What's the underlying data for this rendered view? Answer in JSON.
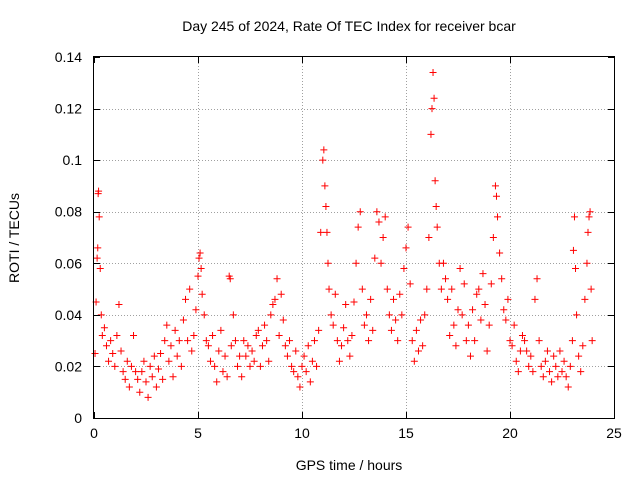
{
  "chart_data": {
    "type": "scatter",
    "title": "Day 245 of 2024, Rate Of TEC Index for receiver bcar",
    "xlabel": "GPS time / hours",
    "ylabel": "ROTI / TECUs",
    "xlim": [
      0,
      25
    ],
    "ylim": [
      0,
      0.14
    ],
    "xticks": [
      0,
      5,
      10,
      15,
      20,
      25
    ],
    "xtick_labels": [
      "0",
      "5",
      "10",
      "15",
      "20",
      "25"
    ],
    "yticks": [
      0,
      0.02,
      0.04,
      0.06,
      0.08,
      0.1,
      0.12,
      0.14
    ],
    "ytick_labels": [
      "0",
      "0.02",
      "0.04",
      "0.06",
      "0.08",
      "0.1",
      "0.12",
      "0.14"
    ],
    "grid": true,
    "marker": "+",
    "color": "#ff0000",
    "series": [
      {
        "points": [
          [
            0.05,
            0.025
          ],
          [
            0.1,
            0.045
          ],
          [
            0.15,
            0.062
          ],
          [
            0.18,
            0.066
          ],
          [
            0.2,
            0.087
          ],
          [
            0.22,
            0.088
          ],
          [
            0.25,
            0.078
          ],
          [
            0.3,
            0.058
          ],
          [
            0.35,
            0.04
          ],
          [
            0.4,
            0.032
          ],
          [
            0.5,
            0.035
          ],
          [
            0.6,
            0.028
          ],
          [
            0.7,
            0.022
          ],
          [
            0.8,
            0.03
          ],
          [
            0.9,
            0.025
          ],
          [
            1.0,
            0.02
          ],
          [
            1.1,
            0.032
          ],
          [
            1.2,
            0.044
          ],
          [
            1.3,
            0.026
          ],
          [
            1.4,
            0.018
          ],
          [
            1.5,
            0.015
          ],
          [
            1.6,
            0.022
          ],
          [
            1.7,
            0.012
          ],
          [
            1.8,
            0.02
          ],
          [
            1.9,
            0.032
          ],
          [
            2.0,
            0.018
          ],
          [
            2.1,
            0.015
          ],
          [
            2.2,
            0.01
          ],
          [
            2.3,
            0.018
          ],
          [
            2.4,
            0.022
          ],
          [
            2.5,
            0.014
          ],
          [
            2.6,
            0.008
          ],
          [
            2.7,
            0.02
          ],
          [
            2.8,
            0.016
          ],
          [
            2.9,
            0.024
          ],
          [
            3.0,
            0.012
          ],
          [
            3.1,
            0.019
          ],
          [
            3.2,
            0.025
          ],
          [
            3.3,
            0.015
          ],
          [
            3.4,
            0.03
          ],
          [
            3.5,
            0.036
          ],
          [
            3.6,
            0.022
          ],
          [
            3.7,
            0.028
          ],
          [
            3.8,
            0.016
          ],
          [
            3.9,
            0.034
          ],
          [
            4.0,
            0.024
          ],
          [
            4.1,
            0.03
          ],
          [
            4.2,
            0.02
          ],
          [
            4.3,
            0.038
          ],
          [
            4.4,
            0.046
          ],
          [
            4.5,
            0.03
          ],
          [
            4.6,
            0.05
          ],
          [
            4.7,
            0.026
          ],
          [
            4.8,
            0.032
          ],
          [
            4.9,
            0.042
          ],
          [
            5.0,
            0.055
          ],
          [
            5.05,
            0.062
          ],
          [
            5.1,
            0.064
          ],
          [
            5.15,
            0.058
          ],
          [
            5.2,
            0.048
          ],
          [
            5.3,
            0.04
          ],
          [
            5.4,
            0.03
          ],
          [
            5.5,
            0.028
          ],
          [
            5.6,
            0.022
          ],
          [
            5.7,
            0.032
          ],
          [
            5.8,
            0.02
          ],
          [
            5.9,
            0.014
          ],
          [
            6.0,
            0.026
          ],
          [
            6.1,
            0.034
          ],
          [
            6.2,
            0.018
          ],
          [
            6.3,
            0.024
          ],
          [
            6.4,
            0.016
          ],
          [
            6.5,
            0.055
          ],
          [
            6.55,
            0.054
          ],
          [
            6.6,
            0.028
          ],
          [
            6.7,
            0.04
          ],
          [
            6.8,
            0.03
          ],
          [
            6.9,
            0.02
          ],
          [
            7.0,
            0.024
          ],
          [
            7.1,
            0.016
          ],
          [
            7.2,
            0.03
          ],
          [
            7.3,
            0.024
          ],
          [
            7.4,
            0.028
          ],
          [
            7.5,
            0.02
          ],
          [
            7.6,
            0.026
          ],
          [
            7.7,
            0.022
          ],
          [
            7.8,
            0.032
          ],
          [
            7.9,
            0.034
          ],
          [
            8.0,
            0.02
          ],
          [
            8.1,
            0.028
          ],
          [
            8.2,
            0.036
          ],
          [
            8.3,
            0.03
          ],
          [
            8.4,
            0.022
          ],
          [
            8.5,
            0.04
          ],
          [
            8.6,
            0.044
          ],
          [
            8.7,
            0.046
          ],
          [
            8.8,
            0.054
          ],
          [
            8.9,
            0.032
          ],
          [
            9.0,
            0.048
          ],
          [
            9.1,
            0.038
          ],
          [
            9.2,
            0.028
          ],
          [
            9.3,
            0.024
          ],
          [
            9.4,
            0.03
          ],
          [
            9.5,
            0.02
          ],
          [
            9.6,
            0.018
          ],
          [
            9.7,
            0.026
          ],
          [
            9.8,
            0.016
          ],
          [
            9.9,
            0.012
          ],
          [
            10.0,
            0.02
          ],
          [
            10.1,
            0.024
          ],
          [
            10.2,
            0.018
          ],
          [
            10.3,
            0.028
          ],
          [
            10.4,
            0.014
          ],
          [
            10.5,
            0.022
          ],
          [
            10.6,
            0.03
          ],
          [
            10.7,
            0.02
          ],
          [
            10.8,
            0.034
          ],
          [
            10.9,
            0.072
          ],
          [
            11.0,
            0.1
          ],
          [
            11.05,
            0.104
          ],
          [
            11.1,
            0.09
          ],
          [
            11.15,
            0.082
          ],
          [
            11.2,
            0.072
          ],
          [
            11.25,
            0.06
          ],
          [
            11.3,
            0.05
          ],
          [
            11.4,
            0.04
          ],
          [
            11.5,
            0.036
          ],
          [
            11.6,
            0.048
          ],
          [
            11.7,
            0.03
          ],
          [
            11.8,
            0.022
          ],
          [
            11.9,
            0.028
          ],
          [
            12.0,
            0.035
          ],
          [
            12.1,
            0.044
          ],
          [
            12.2,
            0.03
          ],
          [
            12.3,
            0.024
          ],
          [
            12.4,
            0.032
          ],
          [
            12.5,
            0.045
          ],
          [
            12.6,
            0.06
          ],
          [
            12.7,
            0.074
          ],
          [
            12.8,
            0.08
          ],
          [
            12.9,
            0.05
          ],
          [
            13.0,
            0.036
          ],
          [
            13.1,
            0.04
          ],
          [
            13.2,
            0.03
          ],
          [
            13.3,
            0.046
          ],
          [
            13.4,
            0.034
          ],
          [
            13.5,
            0.062
          ],
          [
            13.6,
            0.08
          ],
          [
            13.7,
            0.076
          ],
          [
            13.8,
            0.06
          ],
          [
            13.9,
            0.07
          ],
          [
            14.0,
            0.078
          ],
          [
            14.1,
            0.05
          ],
          [
            14.2,
            0.04
          ],
          [
            14.3,
            0.034
          ],
          [
            14.4,
            0.046
          ],
          [
            14.5,
            0.038
          ],
          [
            14.6,
            0.03
          ],
          [
            14.7,
            0.048
          ],
          [
            14.8,
            0.04
          ],
          [
            14.9,
            0.058
          ],
          [
            15.0,
            0.066
          ],
          [
            15.1,
            0.074
          ],
          [
            15.2,
            0.052
          ],
          [
            15.3,
            0.03
          ],
          [
            15.4,
            0.022
          ],
          [
            15.5,
            0.034
          ],
          [
            15.6,
            0.026
          ],
          [
            15.7,
            0.038
          ],
          [
            15.8,
            0.028
          ],
          [
            15.9,
            0.04
          ],
          [
            16.0,
            0.05
          ],
          [
            16.1,
            0.07
          ],
          [
            16.2,
            0.11
          ],
          [
            16.25,
            0.12
          ],
          [
            16.3,
            0.134
          ],
          [
            16.35,
            0.124
          ],
          [
            16.4,
            0.092
          ],
          [
            16.45,
            0.082
          ],
          [
            16.5,
            0.074
          ],
          [
            16.6,
            0.06
          ],
          [
            16.7,
            0.05
          ],
          [
            16.8,
            0.06
          ],
          [
            16.9,
            0.054
          ],
          [
            17.0,
            0.046
          ],
          [
            17.1,
            0.032
          ],
          [
            17.2,
            0.05
          ],
          [
            17.3,
            0.036
          ],
          [
            17.4,
            0.028
          ],
          [
            17.5,
            0.042
          ],
          [
            17.6,
            0.058
          ],
          [
            17.7,
            0.04
          ],
          [
            17.8,
            0.052
          ],
          [
            17.9,
            0.03
          ],
          [
            18.0,
            0.036
          ],
          [
            18.1,
            0.024
          ],
          [
            18.2,
            0.042
          ],
          [
            18.3,
            0.03
          ],
          [
            18.4,
            0.048
          ],
          [
            18.5,
            0.05
          ],
          [
            18.6,
            0.038
          ],
          [
            18.7,
            0.056
          ],
          [
            18.8,
            0.044
          ],
          [
            18.9,
            0.026
          ],
          [
            19.0,
            0.036
          ],
          [
            19.1,
            0.052
          ],
          [
            19.2,
            0.07
          ],
          [
            19.3,
            0.09
          ],
          [
            19.35,
            0.086
          ],
          [
            19.4,
            0.078
          ],
          [
            19.5,
            0.064
          ],
          [
            19.6,
            0.054
          ],
          [
            19.7,
            0.042
          ],
          [
            19.8,
            0.038
          ],
          [
            19.9,
            0.046
          ],
          [
            20.0,
            0.03
          ],
          [
            20.1,
            0.028
          ],
          [
            20.2,
            0.036
          ],
          [
            20.3,
            0.022
          ],
          [
            20.4,
            0.018
          ],
          [
            20.5,
            0.026
          ],
          [
            20.6,
            0.032
          ],
          [
            20.7,
            0.03
          ],
          [
            20.8,
            0.026
          ],
          [
            20.9,
            0.02
          ],
          [
            21.0,
            0.024
          ],
          [
            21.1,
            0.018
          ],
          [
            21.2,
            0.046
          ],
          [
            21.3,
            0.054
          ],
          [
            21.4,
            0.03
          ],
          [
            21.5,
            0.02
          ],
          [
            21.6,
            0.016
          ],
          [
            21.7,
            0.022
          ],
          [
            21.8,
            0.026
          ],
          [
            21.9,
            0.018
          ],
          [
            22.0,
            0.014
          ],
          [
            22.1,
            0.024
          ],
          [
            22.2,
            0.02
          ],
          [
            22.3,
            0.016
          ],
          [
            22.4,
            0.026
          ],
          [
            22.5,
            0.018
          ],
          [
            22.6,
            0.022
          ],
          [
            22.7,
            0.016
          ],
          [
            22.8,
            0.012
          ],
          [
            22.9,
            0.02
          ],
          [
            23.0,
            0.03
          ],
          [
            23.05,
            0.065
          ],
          [
            23.1,
            0.078
          ],
          [
            23.15,
            0.058
          ],
          [
            23.2,
            0.04
          ],
          [
            23.3,
            0.024
          ],
          [
            23.4,
            0.018
          ],
          [
            23.5,
            0.028
          ],
          [
            23.6,
            0.046
          ],
          [
            23.7,
            0.06
          ],
          [
            23.75,
            0.072
          ],
          [
            23.8,
            0.078
          ],
          [
            23.85,
            0.08
          ],
          [
            23.9,
            0.05
          ],
          [
            23.95,
            0.03
          ]
        ]
      }
    ]
  }
}
